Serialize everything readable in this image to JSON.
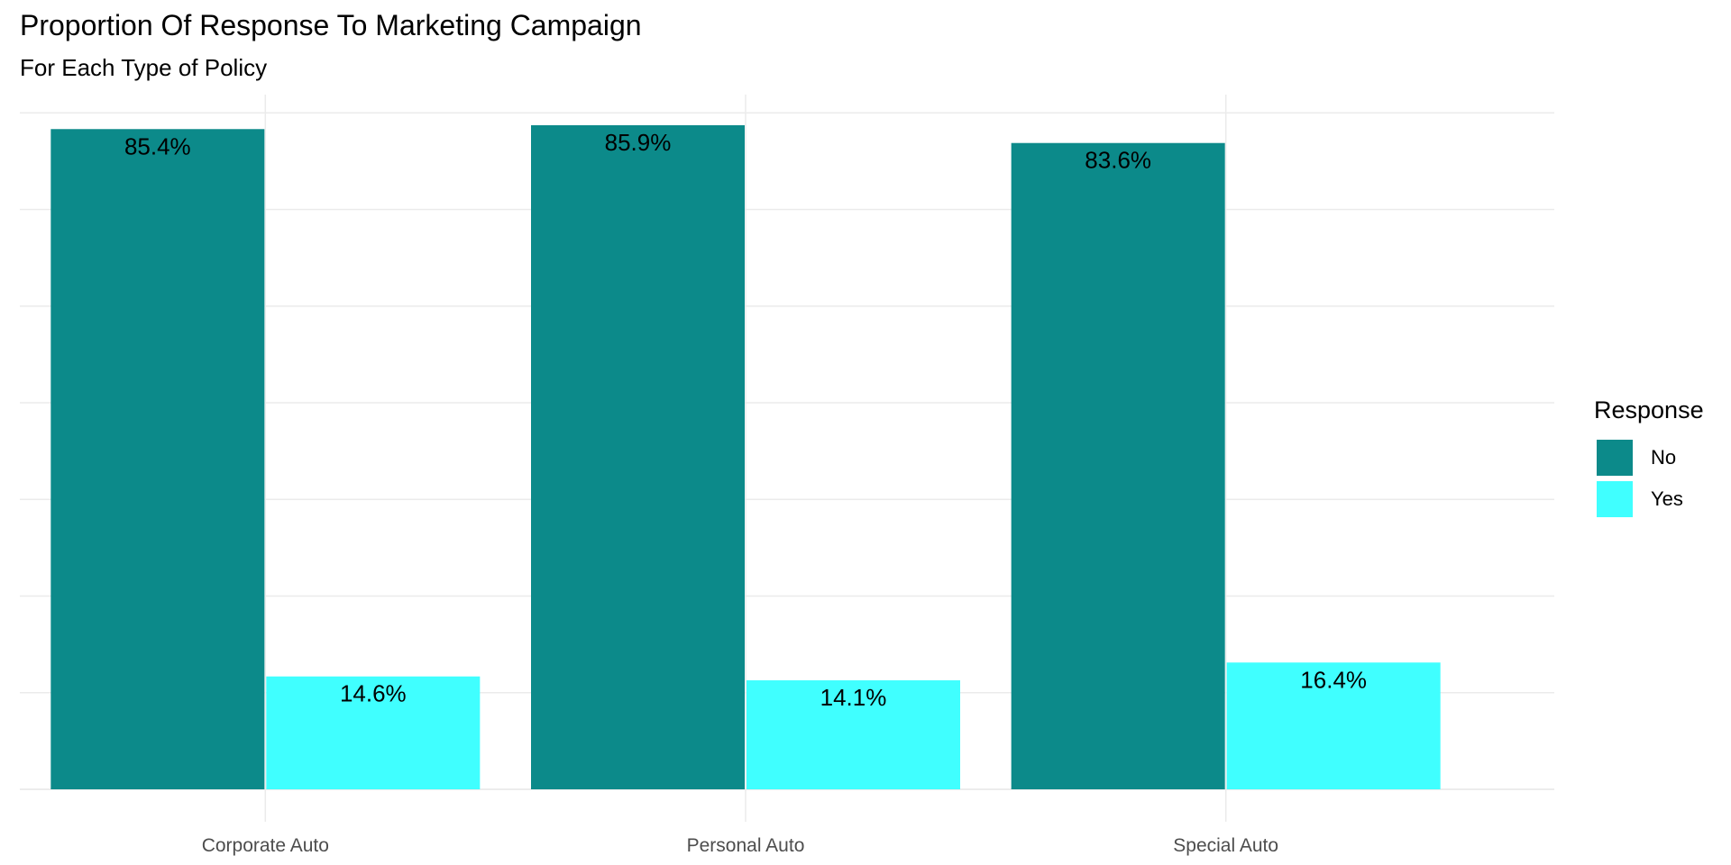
{
  "chart_data": {
    "type": "bar",
    "title": "Proportion Of Response To Marketing Campaign",
    "subtitle": "For Each Type of Policy",
    "xlabel": "",
    "ylabel": "",
    "categories": [
      "Corporate Auto",
      "Personal Auto",
      "Special Auto"
    ],
    "series": [
      {
        "name": "No",
        "color": "#0c8a8a",
        "values": [
          85.4,
          85.9,
          83.6
        ],
        "labels": [
          "85.4%",
          "85.9%",
          "83.6%"
        ]
      },
      {
        "name": "Yes",
        "color": "#40ffff",
        "values": [
          14.6,
          14.1,
          16.4
        ],
        "labels": [
          "14.6%",
          "14.1%",
          "16.4%"
        ]
      }
    ],
    "ylim": [
      0,
      90
    ],
    "y_gridlines": [
      0,
      12.5,
      25,
      37.5,
      50,
      62.5,
      75,
      87.5
    ],
    "y_tick_labels_shown": false,
    "grid": true,
    "legend": {
      "title": "Response",
      "position": "right"
    }
  }
}
